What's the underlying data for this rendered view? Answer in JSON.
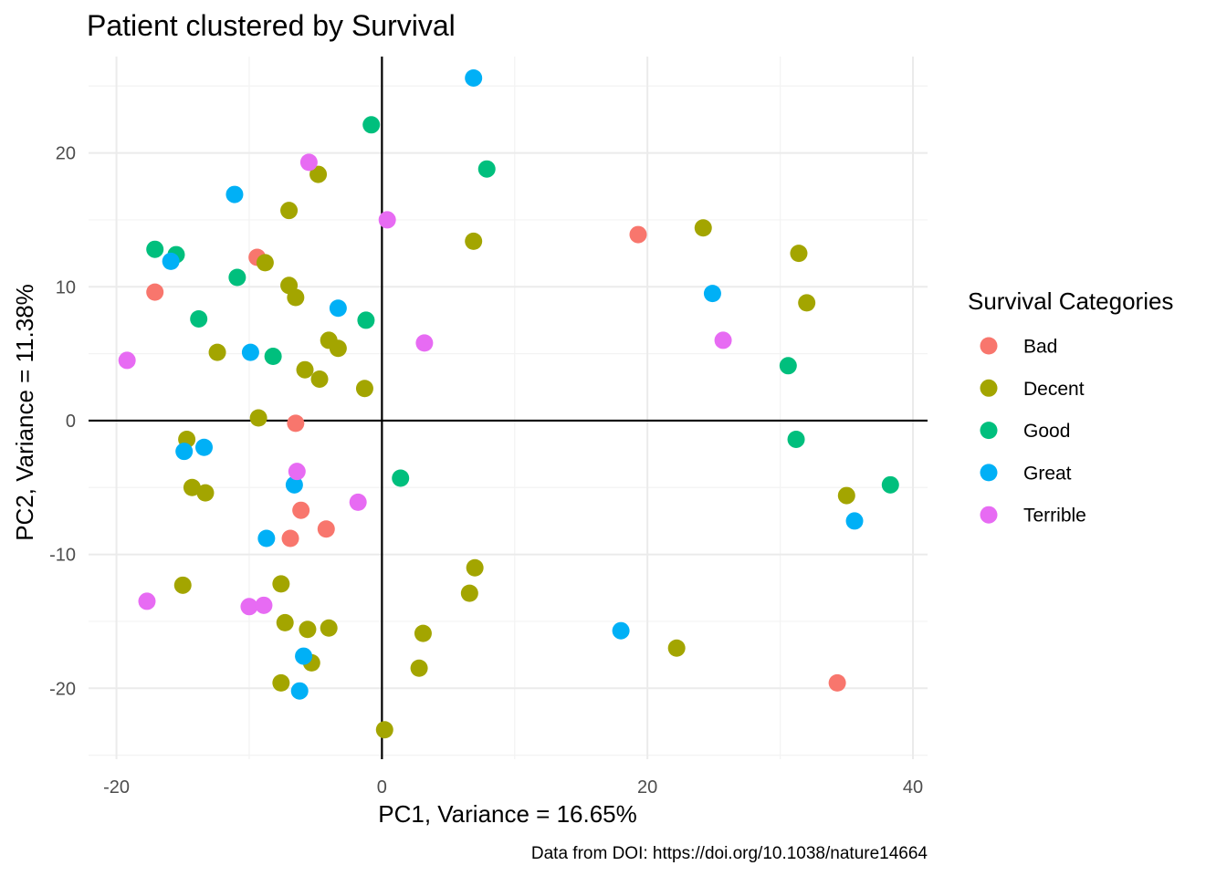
{
  "chart_data": {
    "type": "scatter",
    "title": "Patient clustered by Survival",
    "xlabel": "PC1, Variance = 16.65%",
    "ylabel": "PC2, Variance = 11.38%",
    "caption": "Data from DOI: https://doi.org/10.1038/nature14664",
    "xlim": [
      -22.1,
      41.1
    ],
    "ylim": [
      -25.3,
      27.2
    ],
    "x_ticks": [
      -20,
      0,
      20,
      40
    ],
    "x_tick_labels": [
      "-20",
      "0",
      "20",
      "40"
    ],
    "y_ticks": [
      -20,
      -10,
      0,
      10,
      20
    ],
    "y_tick_labels": [
      "-20",
      "-10",
      "0",
      "10",
      "20"
    ],
    "grid": true,
    "zero_lines": true,
    "legend": {
      "title": "Survival Categories",
      "position": "right"
    },
    "series": [
      {
        "name": "Bad",
        "color": "#F8766D",
        "points": [
          [
            -9.4,
            12.2
          ],
          [
            -17.1,
            9.6
          ],
          [
            -6.5,
            -0.2
          ],
          [
            -6.1,
            -6.7
          ],
          [
            -6.9,
            -8.8
          ],
          [
            -4.2,
            -8.1
          ],
          [
            19.3,
            13.9
          ],
          [
            34.3,
            -19.6
          ]
        ]
      },
      {
        "name": "Decent",
        "color": "#A3A500",
        "points": [
          [
            -4.8,
            18.4
          ],
          [
            -7.0,
            15.7
          ],
          [
            -8.8,
            11.8
          ],
          [
            -7.0,
            10.1
          ],
          [
            -6.5,
            9.2
          ],
          [
            -12.4,
            5.1
          ],
          [
            -4.0,
            6.0
          ],
          [
            -3.3,
            5.4
          ],
          [
            -5.8,
            3.8
          ],
          [
            -4.7,
            3.1
          ],
          [
            -1.3,
            2.4
          ],
          [
            -9.3,
            0.2
          ],
          [
            -14.7,
            -1.4
          ],
          [
            -14.3,
            -5.0
          ],
          [
            -13.3,
            -5.4
          ],
          [
            -15.0,
            -12.3
          ],
          [
            -7.6,
            -12.2
          ],
          [
            -7.3,
            -15.1
          ],
          [
            -5.6,
            -15.6
          ],
          [
            -4.0,
            -15.5
          ],
          [
            -7.6,
            -19.6
          ],
          [
            -5.3,
            -18.1
          ],
          [
            0.2,
            -23.1
          ],
          [
            2.8,
            -18.5
          ],
          [
            3.1,
            -15.9
          ],
          [
            6.6,
            -12.9
          ],
          [
            7.0,
            -11.0
          ],
          [
            6.9,
            13.4
          ],
          [
            24.2,
            14.4
          ],
          [
            31.4,
            12.5
          ],
          [
            32.0,
            8.8
          ],
          [
            35.0,
            -5.6
          ],
          [
            22.2,
            -17.0
          ]
        ]
      },
      {
        "name": "Good",
        "color": "#00BF7D",
        "points": [
          [
            -0.8,
            22.1
          ],
          [
            7.9,
            18.8
          ],
          [
            -17.1,
            12.8
          ],
          [
            -15.5,
            12.4
          ],
          [
            -10.9,
            10.7
          ],
          [
            -13.8,
            7.6
          ],
          [
            -8.2,
            4.8
          ],
          [
            -1.2,
            7.5
          ],
          [
            1.4,
            -4.3
          ],
          [
            30.6,
            4.1
          ],
          [
            31.2,
            -1.4
          ],
          [
            38.3,
            -4.8
          ]
        ]
      },
      {
        "name": "Great",
        "color": "#00B0F6",
        "points": [
          [
            6.9,
            25.6
          ],
          [
            -11.1,
            16.9
          ],
          [
            -15.9,
            11.9
          ],
          [
            -3.3,
            8.4
          ],
          [
            -9.9,
            5.1
          ],
          [
            -13.4,
            -2.0
          ],
          [
            -14.9,
            -2.3
          ],
          [
            -6.6,
            -4.8
          ],
          [
            -8.7,
            -8.8
          ],
          [
            -5.9,
            -17.6
          ],
          [
            -6.2,
            -20.2
          ],
          [
            18.0,
            -15.7
          ],
          [
            24.9,
            9.5
          ],
          [
            35.6,
            -7.5
          ]
        ]
      },
      {
        "name": "Terrible",
        "color": "#E76BF3",
        "points": [
          [
            -5.5,
            19.3
          ],
          [
            0.4,
            15.0
          ],
          [
            3.2,
            5.8
          ],
          [
            -19.2,
            4.5
          ],
          [
            -6.4,
            -3.8
          ],
          [
            -1.8,
            -6.1
          ],
          [
            -17.7,
            -13.5
          ],
          [
            -10.0,
            -13.9
          ],
          [
            -8.9,
            -13.8
          ],
          [
            25.7,
            6.0
          ]
        ]
      }
    ]
  }
}
